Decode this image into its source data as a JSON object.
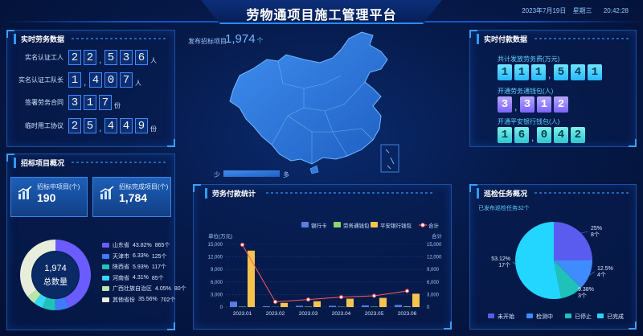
{
  "header": {
    "title": "劳物通项目施工管理平台",
    "date": "2023年7月19日",
    "weekday": "星期三",
    "time": "20:42:28"
  },
  "realtime_labor": {
    "title": "实时劳务数据",
    "rows": [
      {
        "label": "实名认证工人",
        "digits": [
          "2",
          "2",
          "5",
          "3",
          "6"
        ],
        "sep_after": 1,
        "unit": "人"
      },
      {
        "label": "实名认证工队长",
        "digits": [
          "1",
          "4",
          "0",
          "7"
        ],
        "sep_after": 0,
        "unit": "人"
      },
      {
        "label": "签署劳务合同",
        "digits": [
          "3",
          "1",
          "7"
        ],
        "sep_after": -1,
        "unit": "份"
      },
      {
        "label": "临时用工协议",
        "digits": [
          "2",
          "5",
          "4",
          "4",
          "9"
        ],
        "sep_after": 1,
        "unit": "份"
      }
    ]
  },
  "bidding": {
    "title": "招标项目概况",
    "box1": {
      "label": "招标中项目(个)",
      "value": "190"
    },
    "box2": {
      "label": "招标完成项目(个)",
      "value": "1,784"
    },
    "donut_value": "1,974",
    "donut_label": "总数量",
    "legend": [
      {
        "name": "山东省",
        "pct": "43.82%",
        "count": "865个",
        "color": "#6a5cff"
      },
      {
        "name": "天津市",
        "pct": "6.33%",
        "count": "125个",
        "color": "#3d7bff"
      },
      {
        "name": "陕西省",
        "pct": "5.93%",
        "count": "117个",
        "color": "#1fc2b8"
      },
      {
        "name": "河南省",
        "pct": "4.31%",
        "count": "85个",
        "color": "#38d6f5"
      },
      {
        "name": "广西壮族自治区",
        "pct": "4.05%",
        "count": "80个",
        "color": "#b9e6a8"
      },
      {
        "name": "其他省份",
        "pct": "35.56%",
        "count": "702个",
        "color": "#e8eedc"
      }
    ]
  },
  "map": {
    "label": "发布招标项目",
    "value": "1,974",
    "unit": "个",
    "legend_low": "少",
    "legend_high": "多"
  },
  "payment_stats": {
    "title": "劳务付款统计",
    "legend": [
      "银行卡",
      "劳务通钱包",
      "平安银行钱包",
      "合计"
    ],
    "left_unit": "单位(万元)",
    "right_unit": "合计",
    "y_ticks": [
      "15,000",
      "12,000",
      "9,000",
      "6,000",
      "3,000",
      "0"
    ]
  },
  "chart_data": {
    "type": "bar",
    "categories": [
      "2023.01",
      "2023.02",
      "2023.03",
      "2023.04",
      "2023.05",
      "2023.06"
    ],
    "ylim": [
      0,
      15000
    ],
    "series": [
      {
        "name": "银行卡",
        "color": "#5b7ce0",
        "values": [
          1300,
          200,
          300,
          300,
          400,
          500
        ]
      },
      {
        "name": "劳务通钱包",
        "color": "#8fd46b",
        "values": [
          100,
          50,
          100,
          80,
          100,
          150
        ]
      },
      {
        "name": "平安银行钱包",
        "color": "#f7c34f",
        "values": [
          13500,
          1000,
          1400,
          2000,
          2200,
          3200
        ]
      },
      {
        "name": "合计",
        "color": "#ff5a5a",
        "type": "line",
        "values": [
          14900,
          1250,
          1800,
          2380,
          2700,
          3850
        ]
      }
    ]
  },
  "realtime_pay": {
    "title": "实时付款数据",
    "groups": [
      {
        "label": "共计发放劳务费(万元)",
        "digits": [
          "1",
          "1",
          "1",
          "5",
          "4",
          "1"
        ],
        "sep_after": 2,
        "style": "cyan"
      },
      {
        "label": "开通劳务通钱包(人)",
        "digits": [
          "3",
          "3",
          "1",
          "2"
        ],
        "sep_after": 0,
        "style": "purple"
      },
      {
        "label": "开通平安银行钱包(人)",
        "digits": [
          "1",
          "6",
          "0",
          "4",
          "2"
        ],
        "sep_after": 1,
        "style": "teal"
      }
    ]
  },
  "inspection": {
    "title": "巡检任务概况",
    "subtitle": "已发布巡检任务32个",
    "slices": [
      {
        "name": "未开始",
        "pct": "25%",
        "count": "8个",
        "value": 8,
        "color": "#5a5cf0"
      },
      {
        "name": "检测中",
        "pct": "12.5%",
        "count": "4个",
        "value": 4,
        "color": "#3f8cff"
      },
      {
        "name": "已停止",
        "pct": "9.38%",
        "count": "3个",
        "value": 3,
        "color": "#1fc2b8"
      },
      {
        "name": "已完成",
        "pct": "53.12%",
        "count": "17个",
        "value": 17,
        "color": "#22d6ff"
      }
    ]
  }
}
